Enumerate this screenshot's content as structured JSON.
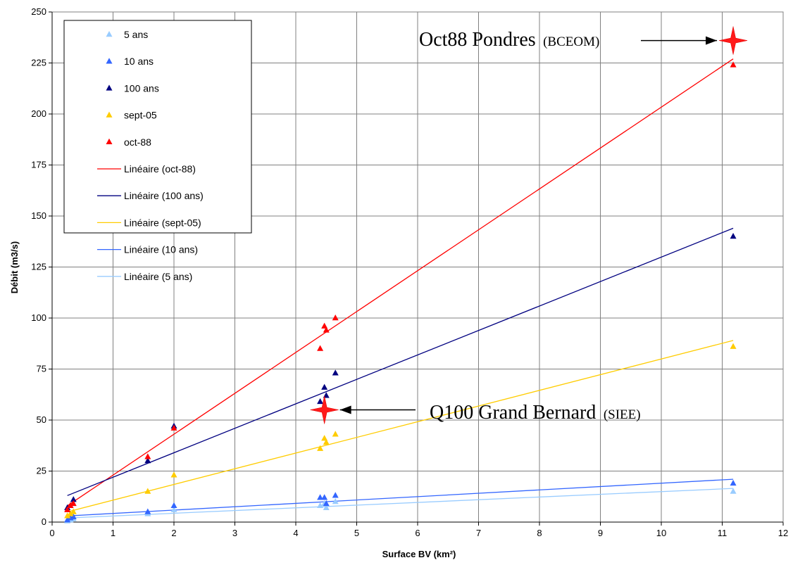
{
  "chart_data": {
    "type": "scatter",
    "xlabel": "Surface BV (km²)",
    "ylabel": "Débit (m3/s)",
    "xlim": [
      0,
      12
    ],
    "ylim": [
      0,
      250
    ],
    "xticks": [
      0,
      1,
      2,
      3,
      4,
      5,
      6,
      7,
      8,
      9,
      10,
      11,
      12
    ],
    "yticks": [
      0,
      25,
      50,
      75,
      100,
      125,
      150,
      175,
      200,
      225,
      250
    ],
    "grid": true,
    "legend_position": "top-left",
    "series": [
      {
        "name": "5 ans",
        "color": "#99ccff",
        "marker": "triangle",
        "points": [
          [
            0.25,
            0.5
          ],
          [
            0.3,
            1
          ],
          [
            0.35,
            1.5
          ],
          [
            1.57,
            4
          ],
          [
            2.0,
            6
          ],
          [
            4.4,
            8
          ],
          [
            4.47,
            9
          ],
          [
            4.5,
            7
          ],
          [
            4.65,
            10
          ],
          [
            11.18,
            15
          ]
        ]
      },
      {
        "name": "10 ans",
        "color": "#3366ff",
        "marker": "triangle",
        "points": [
          [
            0.25,
            1
          ],
          [
            0.3,
            2
          ],
          [
            0.35,
            2.5
          ],
          [
            1.57,
            5
          ],
          [
            2.0,
            8
          ],
          [
            4.4,
            12
          ],
          [
            4.47,
            12
          ],
          [
            4.5,
            9
          ],
          [
            4.65,
            13
          ],
          [
            11.18,
            19
          ]
        ]
      },
      {
        "name": "100 ans",
        "color": "#000080",
        "marker": "triangle",
        "points": [
          [
            0.25,
            7
          ],
          [
            0.3,
            8
          ],
          [
            0.35,
            11
          ],
          [
            1.57,
            30
          ],
          [
            2.0,
            47
          ],
          [
            4.4,
            59
          ],
          [
            4.47,
            66
          ],
          [
            4.5,
            62
          ],
          [
            4.65,
            73
          ],
          [
            11.18,
            140
          ]
        ]
      },
      {
        "name": "sept-05",
        "color": "#ffcc00",
        "marker": "triangle",
        "points": [
          [
            0.25,
            3
          ],
          [
            0.3,
            4
          ],
          [
            0.35,
            5
          ],
          [
            1.57,
            15
          ],
          [
            2.0,
            23
          ],
          [
            4.4,
            36
          ],
          [
            4.47,
            41
          ],
          [
            4.5,
            39
          ],
          [
            4.65,
            43
          ],
          [
            11.18,
            86
          ]
        ]
      },
      {
        "name": "oct-88",
        "color": "#ff0000",
        "marker": "triangle",
        "points": [
          [
            0.25,
            6
          ],
          [
            0.3,
            8
          ],
          [
            0.35,
            9
          ],
          [
            1.57,
            32
          ],
          [
            2.0,
            46
          ],
          [
            4.4,
            85
          ],
          [
            4.47,
            96
          ],
          [
            4.5,
            94
          ],
          [
            4.65,
            100
          ],
          [
            11.18,
            224
          ]
        ]
      }
    ],
    "trendlines": [
      {
        "name": "Linéaire (oct-88)",
        "color": "#ff0000",
        "from": [
          0.25,
          8
        ],
        "to": [
          11.18,
          227
        ]
      },
      {
        "name": "Linéaire (100 ans)",
        "color": "#000080",
        "from": [
          0.25,
          13
        ],
        "to": [
          11.18,
          144
        ]
      },
      {
        "name": "Linéaire (sept-05)",
        "color": "#ffcc00",
        "from": [
          0.25,
          5
        ],
        "to": [
          11.18,
          89
        ]
      },
      {
        "name": "Linéaire (10 ans)",
        "color": "#3366ff",
        "from": [
          0.25,
          3
        ],
        "to": [
          11.18,
          21
        ]
      },
      {
        "name": "Linéaire (5 ans)",
        "color": "#99ccff",
        "from": [
          0.25,
          2
        ],
        "to": [
          11.18,
          16.5
        ]
      }
    ],
    "annotations": [
      {
        "id": "oct88",
        "text": "Oct88 Pondres",
        "source": "(BCEOM)",
        "x": 11.18,
        "y": 236
      },
      {
        "id": "q100",
        "text": "Q100 Grand Bernard",
        "source": "(SIEE)",
        "x": 4.47,
        "y": 55
      }
    ]
  }
}
